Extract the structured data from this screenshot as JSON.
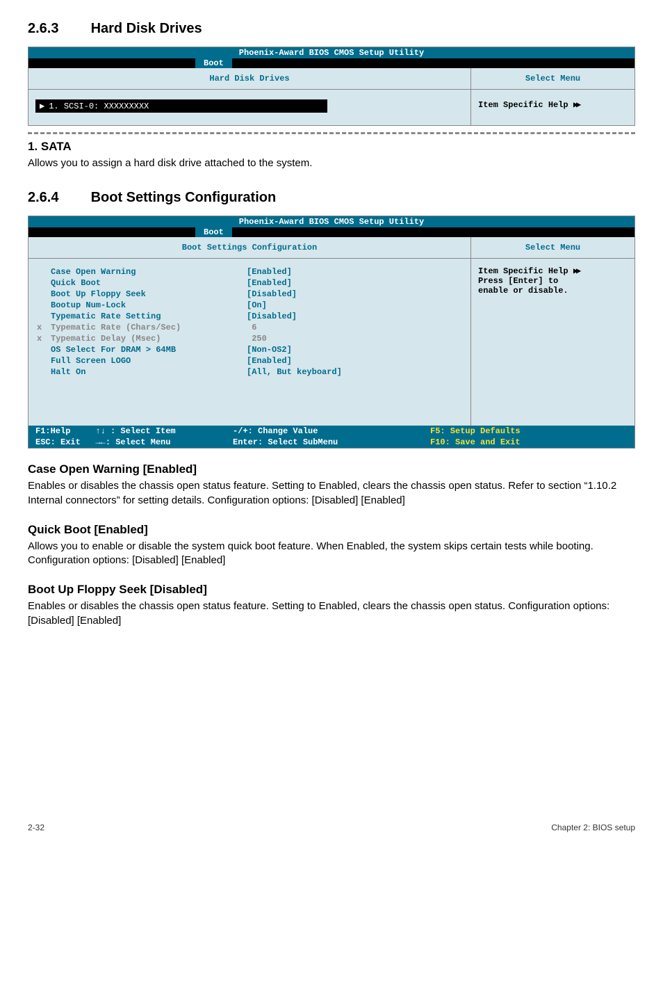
{
  "section263": {
    "number": "2.6.3",
    "title": "Hard Disk Drives",
    "bios_title": "Phoenix-Award BIOS CMOS Setup Utility",
    "tab": "Boot",
    "left_header": "Hard Disk Drives",
    "right_header": "Select Menu",
    "list_item": "1. SCSI-0: XXXXXXXXX",
    "help_text": "Item Specific Help",
    "subhead": "1. SATA",
    "body": "Allows you to assign a hard disk drive attached to the system."
  },
  "section264": {
    "number": "2.6.4",
    "title": "Boot Settings Configuration",
    "bios_title": "Phoenix-Award BIOS CMOS Setup Utility",
    "tab": "Boot",
    "left_header": "Boot Settings Configuration",
    "right_header": "Select Menu",
    "settings": [
      {
        "label": "Case Open Warning",
        "value": "[Enabled]",
        "grey": false
      },
      {
        "label": "Quick Boot",
        "value": "[Enabled]",
        "grey": false
      },
      {
        "label": "Boot Up Floppy Seek",
        "value": "[Disabled]",
        "grey": false
      },
      {
        "label": "Bootup Num-Lock",
        "value": "[On]",
        "grey": false
      },
      {
        "label": "Typematic Rate Setting",
        "value": "[Disabled]",
        "grey": false
      },
      {
        "label": "Typematic Rate (Chars/Sec)",
        "value": " 6",
        "grey": true,
        "prefix": "x"
      },
      {
        "label": "Typematic Delay (Msec)",
        "value": " 250",
        "grey": true,
        "prefix": "x"
      },
      {
        "label": "OS Select For DRAM > 64MB",
        "value": "[Non-OS2]",
        "grey": false
      },
      {
        "label": "Full Screen LOGO",
        "value": "[Enabled]",
        "grey": false
      },
      {
        "label": "Halt On",
        "value": "[All, But keyboard]",
        "grey": false
      }
    ],
    "help_lines": [
      "Item Specific Help",
      "Press [Enter] to",
      "enable or disable."
    ],
    "helpbar": {
      "l1a": "F1:Help     ↑↓ : Select Item",
      "l1b": "-/+: Change Value",
      "l1c": "F5: Setup Defaults",
      "l2a": "ESC: Exit   →←: Select Menu",
      "l2b": "Enter: Select SubMenu",
      "l2c": "F10: Save and Exit"
    }
  },
  "desc": {
    "caseopen_h": "Case Open Warning [Enabled]",
    "caseopen_b": "Enables or disables the chassis open status feature. Setting to Enabled, clears the chassis open status. Refer to section “1.10.2 Internal connectors” for setting details. Configuration options: [Disabled] [Enabled]",
    "quickboot_h": "Quick Boot [Enabled]",
    "quickboot_b": "Allows you to enable or disable the system quick boot feature. When Enabled, the system skips certain tests while booting.\nConfiguration options: [Disabled] [Enabled]",
    "bootup_h": "Boot Up Floppy Seek [Disabled]",
    "bootup_b": "Enables or disables the chassis open status feature. Setting to Enabled, clears the chassis open status. Configuration options: [Disabled] [Enabled]"
  },
  "footer": {
    "left": "2-32",
    "right": "Chapter 2: BIOS setup"
  }
}
